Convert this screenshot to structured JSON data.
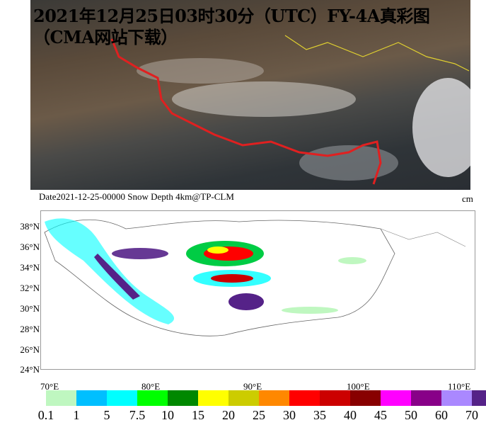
{
  "title": "2021年12月25日03时30分（UTC）FY-4A真彩图（CMA网站下载）",
  "caption": "Date2021-12-25-00000 Snow Depth 4km@TP-CLM",
  "unit": "cm",
  "map": {
    "lat_labels": [
      "38°N",
      "36°N",
      "34°N",
      "32°N",
      "30°N",
      "28°N",
      "26°N",
      "24°N"
    ],
    "lon_labels": [
      "70°E",
      "80°E",
      "90°E",
      "100°E",
      "110°E"
    ]
  },
  "colorbar": {
    "labels": [
      "0.1",
      "1",
      "5",
      "7.5",
      "10",
      "15",
      "20",
      "25",
      "30",
      "35",
      "40",
      "45",
      "50",
      "60",
      "70"
    ],
    "colors": [
      "#ffffff",
      "#bff7c0",
      "#00bfff",
      "#00ffff",
      "#00ff00",
      "#008800",
      "#ffff00",
      "#cccc00",
      "#ff8800",
      "#ff0000",
      "#cc0000",
      "#880000",
      "#ff00ff",
      "#880088",
      "#aa88ff",
      "#552288"
    ]
  }
}
